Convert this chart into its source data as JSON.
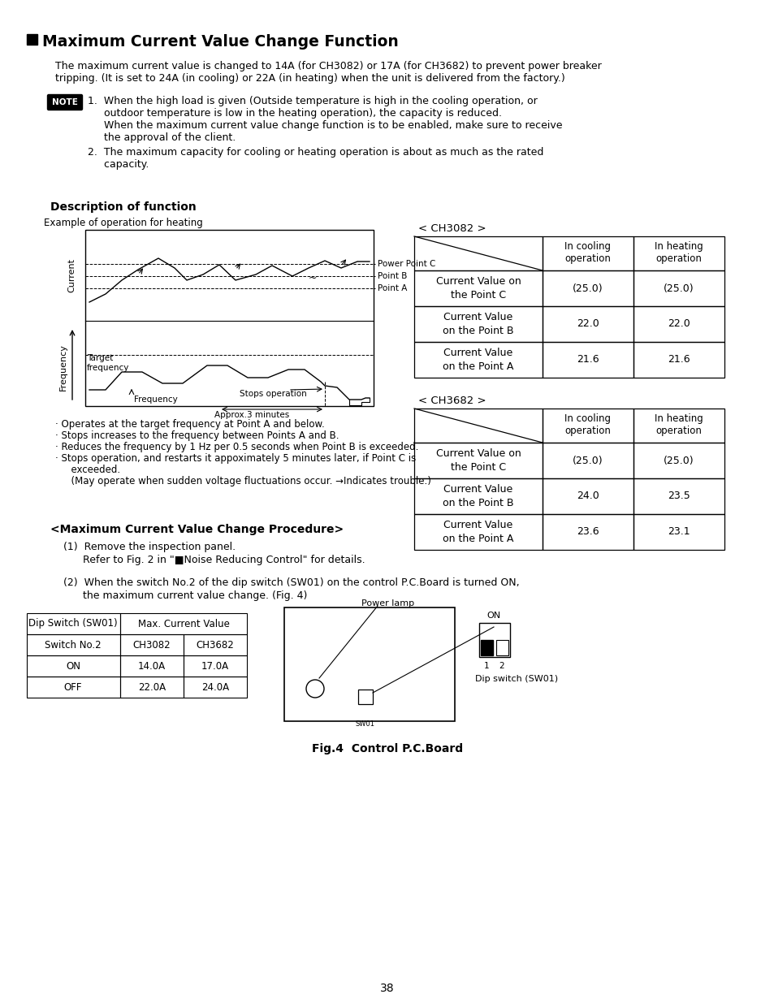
{
  "title": "Maximum Current Value Change Function",
  "bg_color": "#ffffff",
  "text_color": "#000000",
  "page_number": "38",
  "intro_line1": "The maximum current value is changed to 14A (for CH3082) or 17A (for CH3682) to prevent power breaker",
  "intro_line2": "tripping. (It is set to 24A (in cooling) or 22A (in heating) when the unit is delivered from the factory.)",
  "note1_lines": [
    "1.  When the high load is given (Outside temperature is high in the cooling operation, or",
    "     outdoor temperature is low in the heating operation), the capacity is reduced.",
    "     When the maximum current value change function is to be enabled, make sure to receive",
    "     the approval of the client."
  ],
  "note2_lines": [
    "2.  The maximum capacity for cooling or heating operation is about as much as the rated",
    "     capacity."
  ],
  "desc_title": "Description of function",
  "graph_title": "Example of operation for heating",
  "bullet_points": [
    "· Operates at the target frequency at Point A and below.",
    "· Stops increases to the frequency between Points A and B.",
    "· Reduces the frequency by 1 Hz per 0.5 seconds when Point B is exceeded.",
    "· Stops operation, and restarts it appoximately 5 minutes later, if Point C is",
    "  exceeded.",
    "  (May operate when sudden voltage fluctuations occur. →Indicates trouble.)"
  ],
  "ch3082_label": "< CH3082 >",
  "ch3082_rows": [
    [
      "Current Value on\nthe Point C",
      "(25.0)",
      "(25.0)"
    ],
    [
      "Current Value\non the Point B",
      "22.0",
      "22.0"
    ],
    [
      "Current Value\non the Point A",
      "21.6",
      "21.6"
    ]
  ],
  "ch3682_label": "< CH3682 >",
  "ch3682_rows": [
    [
      "Current Value on\nthe Point C",
      "(25.0)",
      "(25.0)"
    ],
    [
      "Current Value\non the Point B",
      "24.0",
      "23.5"
    ],
    [
      "Current Value\non the Point A",
      "23.6",
      "23.1"
    ]
  ],
  "col_headers": [
    "In cooling\noperation",
    "In heating\noperation"
  ],
  "procedure_title": "<Maximum Current Value Change Procedure>",
  "proc1_lines": [
    "(1)  Remove the inspection panel.",
    "      Refer to Fig. 2 in \"■Noise Reducing Control\" for details."
  ],
  "proc2_lines": [
    "(2)  When the switch No.2 of the dip switch (SW01) on the control P.C.Board is turned ON,",
    "      the maximum current value change. (Fig. 4)"
  ],
  "dip_rows": [
    [
      "ON",
      "14.0A",
      "17.0A"
    ],
    [
      "OFF",
      "22.0A",
      "24.0A"
    ]
  ],
  "power_lamp_label": "Power lamp",
  "sw01_label": "SW01",
  "dip_switch_label": "Dip switch (SW01)",
  "on_label": "ON",
  "fig_caption": "Fig.4  Control P.C.Board"
}
